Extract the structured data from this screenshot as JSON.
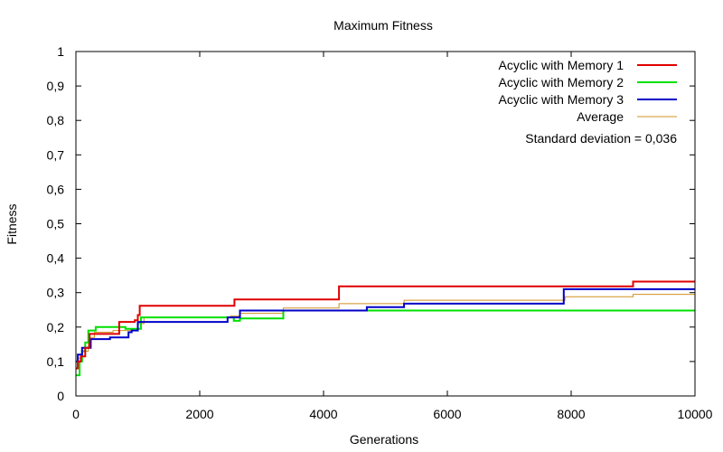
{
  "chart_data": {
    "type": "line",
    "title": "Maximum Fitness",
    "xlabel": "Generations",
    "ylabel": "Fitness",
    "xlim": [
      0,
      10000
    ],
    "ylim": [
      0,
      1
    ],
    "xticks": [
      0,
      2000,
      4000,
      6000,
      8000,
      10000
    ],
    "xtick_labels": [
      "0",
      "2000",
      "4000",
      "6000",
      "8000",
      "10000"
    ],
    "yticks": [
      0,
      0.1,
      0.2,
      0.3,
      0.4,
      0.5,
      0.6,
      0.7,
      0.8,
      0.9,
      1
    ],
    "ytick_labels": [
      "0",
      "0,1",
      "0,2",
      "0,3",
      "0,4",
      "0,5",
      "0,6",
      "0,7",
      "0,8",
      "0,9",
      "1"
    ],
    "grid": false,
    "legend_position": "top-right",
    "annotation": "Standard deviation = 0,036",
    "series": [
      {
        "name": "Acyclic with Memory 1",
        "color": "#e00000",
        "step": true,
        "x": [
          0,
          30,
          80,
          150,
          220,
          700,
          950,
          1000,
          1030,
          2560,
          4250,
          9000,
          10000
        ],
        "y": [
          0.08,
          0.1,
          0.115,
          0.14,
          0.18,
          0.215,
          0.22,
          0.235,
          0.262,
          0.28,
          0.318,
          0.332,
          0.332
        ]
      },
      {
        "name": "Acyclic with Memory 2",
        "color": "#00e000",
        "step": true,
        "x": [
          0,
          60,
          100,
          150,
          200,
          320,
          800,
          1050,
          2550,
          2650,
          3350,
          10000
        ],
        "y": [
          0.06,
          0.1,
          0.13,
          0.155,
          0.19,
          0.2,
          0.195,
          0.228,
          0.218,
          0.225,
          0.248,
          0.248
        ]
      },
      {
        "name": "Acyclic with Memory 3",
        "color": "#0000c8",
        "step": true,
        "x": [
          0,
          30,
          100,
          240,
          550,
          850,
          900,
          1000,
          2450,
          2650,
          4700,
          5300,
          7880,
          10000
        ],
        "y": [
          0.1,
          0.12,
          0.14,
          0.165,
          0.17,
          0.185,
          0.19,
          0.215,
          0.228,
          0.248,
          0.258,
          0.268,
          0.31,
          0.31
        ]
      },
      {
        "name": "Average",
        "color": "#d09020",
        "step": true,
        "x": [
          0,
          40,
          100,
          200,
          300,
          600,
          1000,
          1100,
          2500,
          2650,
          3350,
          4250,
          4700,
          5300,
          7900,
          9000,
          10000
        ],
        "y": [
          0.08,
          0.11,
          0.13,
          0.17,
          0.185,
          0.19,
          0.21,
          0.227,
          0.232,
          0.24,
          0.255,
          0.268,
          0.268,
          0.278,
          0.288,
          0.295,
          0.295
        ]
      }
    ]
  }
}
